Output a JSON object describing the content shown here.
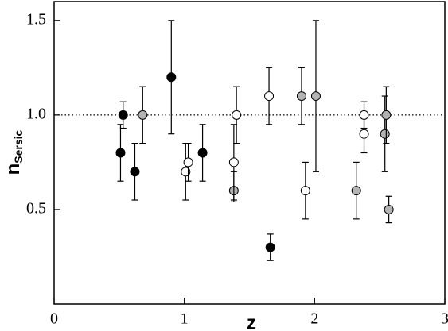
{
  "chart_data": {
    "type": "scatter",
    "xlabel": "z",
    "ylabel": "n",
    "ylabel_subscript": "Sersic",
    "xlim": [
      0,
      3
    ],
    "ylim": [
      0,
      1.6
    ],
    "xticks": [
      0,
      1,
      2,
      3
    ],
    "yticks": [
      0.5,
      {
        "value": 1.0,
        "label": "1.0"
      },
      1.5
    ],
    "reference_line": 1.0,
    "series": [
      {
        "color": "#000000",
        "x": [
          0.51,
          0.53,
          0.62,
          0.9,
          1.14,
          1.66
        ],
        "y": [
          0.8,
          1.0,
          0.7,
          1.2,
          0.8,
          0.3
        ],
        "err_minus": [
          0.15,
          0.07,
          0.15,
          0.3,
          0.15,
          0.07
        ],
        "err_plus": [
          0.15,
          0.07,
          0.15,
          0.3,
          0.15,
          0.07
        ]
      },
      {
        "color": "#b3b3b3",
        "x": [
          0.68,
          1.38,
          1.9,
          2.01,
          2.32,
          2.54,
          2.55,
          2.57
        ],
        "y": [
          1.0,
          0.6,
          1.1,
          1.1,
          0.6,
          0.9,
          1.0,
          0.5
        ],
        "err_minus": [
          0.15,
          0.06,
          0.15,
          0.4,
          0.15,
          0.2,
          0.15,
          0.07
        ],
        "err_plus": [
          0.15,
          0.1,
          0.15,
          0.4,
          0.15,
          0.2,
          0.15,
          0.07
        ]
      },
      {
        "color": "#ffffff",
        "x": [
          1.01,
          1.03,
          1.38,
          1.4,
          1.65,
          1.93,
          2.38,
          2.38
        ],
        "y": [
          0.7,
          0.75,
          0.75,
          1.0,
          1.1,
          0.6,
          0.9,
          1.0
        ],
        "err_minus": [
          0.15,
          0.1,
          0.2,
          0.15,
          0.15,
          0.15,
          0.1,
          0.07
        ],
        "err_plus": [
          0.15,
          0.1,
          0.2,
          0.15,
          0.15,
          0.15,
          0.1,
          0.07
        ]
      }
    ]
  }
}
